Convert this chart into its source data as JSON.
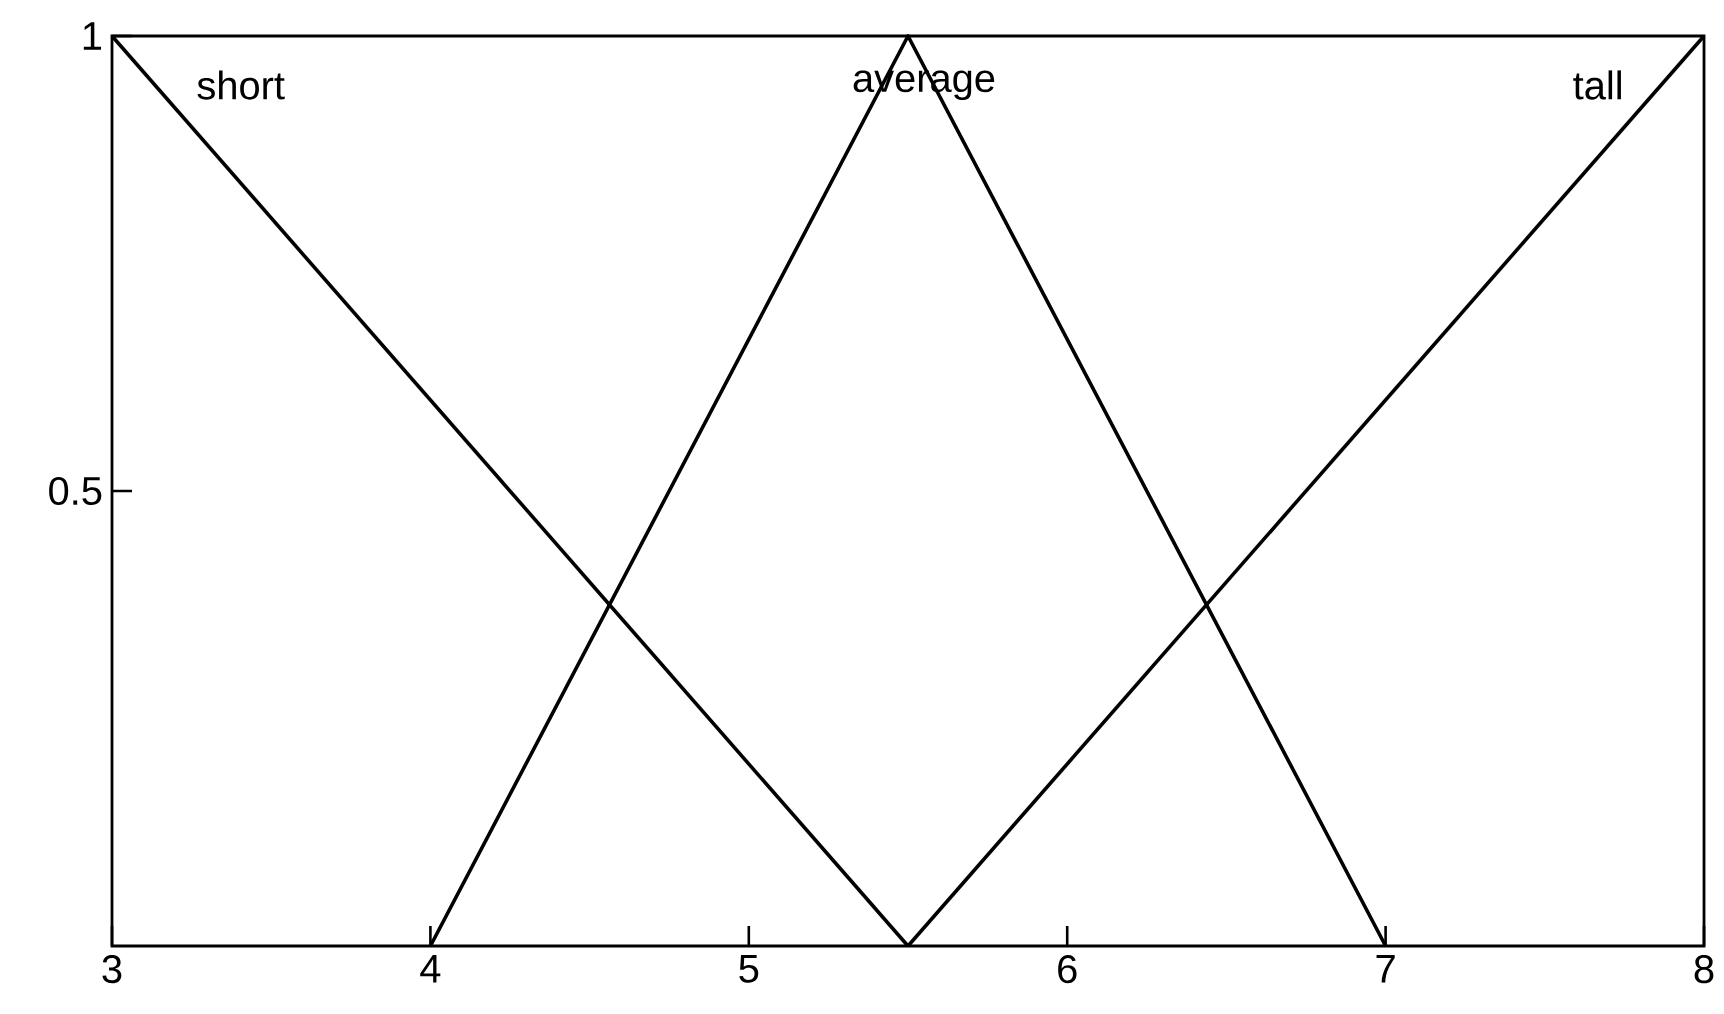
{
  "chart_data": {
    "type": "line",
    "series": [
      {
        "name": "short",
        "color": "#000000",
        "x": [
          3,
          5.5
        ],
        "values": [
          1,
          0
        ]
      },
      {
        "name": "average",
        "color": "#000000",
        "x": [
          4,
          5.5,
          7
        ],
        "values": [
          0,
          1,
          0
        ]
      },
      {
        "name": "tall",
        "color": "#000000",
        "x": [
          5.5,
          8
        ],
        "values": [
          0,
          1
        ]
      }
    ],
    "xlim": [
      3,
      8
    ],
    "ylim": [
      0,
      1
    ],
    "xticks": [
      3,
      4,
      5,
      6,
      7,
      8
    ],
    "yticks": [
      0.5,
      1
    ]
  }
}
